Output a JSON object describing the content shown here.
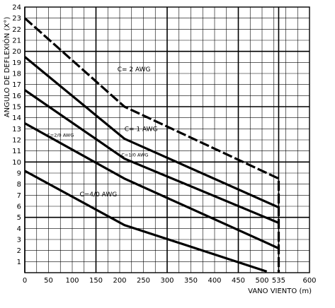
{
  "chart_data": {
    "type": "line",
    "title": "",
    "xlabel": "VANO VIENTO (m)",
    "ylabel": "ANGULO DE DEFLEXIÓN (X°)",
    "xlim": [
      0,
      600
    ],
    "ylim": [
      0,
      24
    ],
    "xticks": [
      0,
      50,
      100,
      150,
      200,
      250,
      300,
      350,
      400,
      450,
      500,
      535,
      600
    ],
    "yticks": [
      1,
      2,
      3,
      4,
      5,
      6,
      7,
      8,
      9,
      10,
      11,
      12,
      13,
      14,
      15,
      16,
      17,
      18,
      19,
      20,
      21,
      22,
      23,
      24
    ],
    "grid": true,
    "grid_minor_x": 25,
    "grid_minor_y": 1,
    "grid_major_x": [
      0,
      150,
      300,
      450,
      535
    ],
    "grid_major_y": [
      5,
      10,
      15,
      20
    ],
    "series": [
      {
        "name": "C= 2 AWG",
        "x": [
          0,
          210,
          535,
          535
        ],
        "y": [
          23.0,
          15.0,
          8.5,
          0
        ]
      },
      {
        "name": "C= 1 AWG",
        "x": [
          0,
          210,
          535
        ],
        "y": [
          19.5,
          12.1,
          5.9
        ]
      },
      {
        "name": "C=1/0 AWG",
        "x": [
          0,
          210,
          535
        ],
        "y": [
          16.5,
          10.3,
          4.5
        ]
      },
      {
        "name": "C=2/0 AWG",
        "x": [
          0,
          210,
          535
        ],
        "y": [
          13.5,
          8.5,
          2.2
        ]
      },
      {
        "name": "C=4/0 AWG",
        "x": [
          0,
          210,
          510
        ],
        "y": [
          9.2,
          4.3,
          0.1
        ]
      }
    ],
    "annotations": [
      {
        "text": "C= 2 AWG",
        "x": 230,
        "y": 18.2
      },
      {
        "text": "C= 1 AWG",
        "x": 245,
        "y": 12.8
      },
      {
        "text": "C=1/0 AWG",
        "x": 232,
        "y": 10.5
      },
      {
        "text": "C=2/0 AWG",
        "x": 75,
        "y": 12.3
      },
      {
        "text": "C=4/0 AWG",
        "x": 155,
        "y": 6.9
      }
    ]
  }
}
